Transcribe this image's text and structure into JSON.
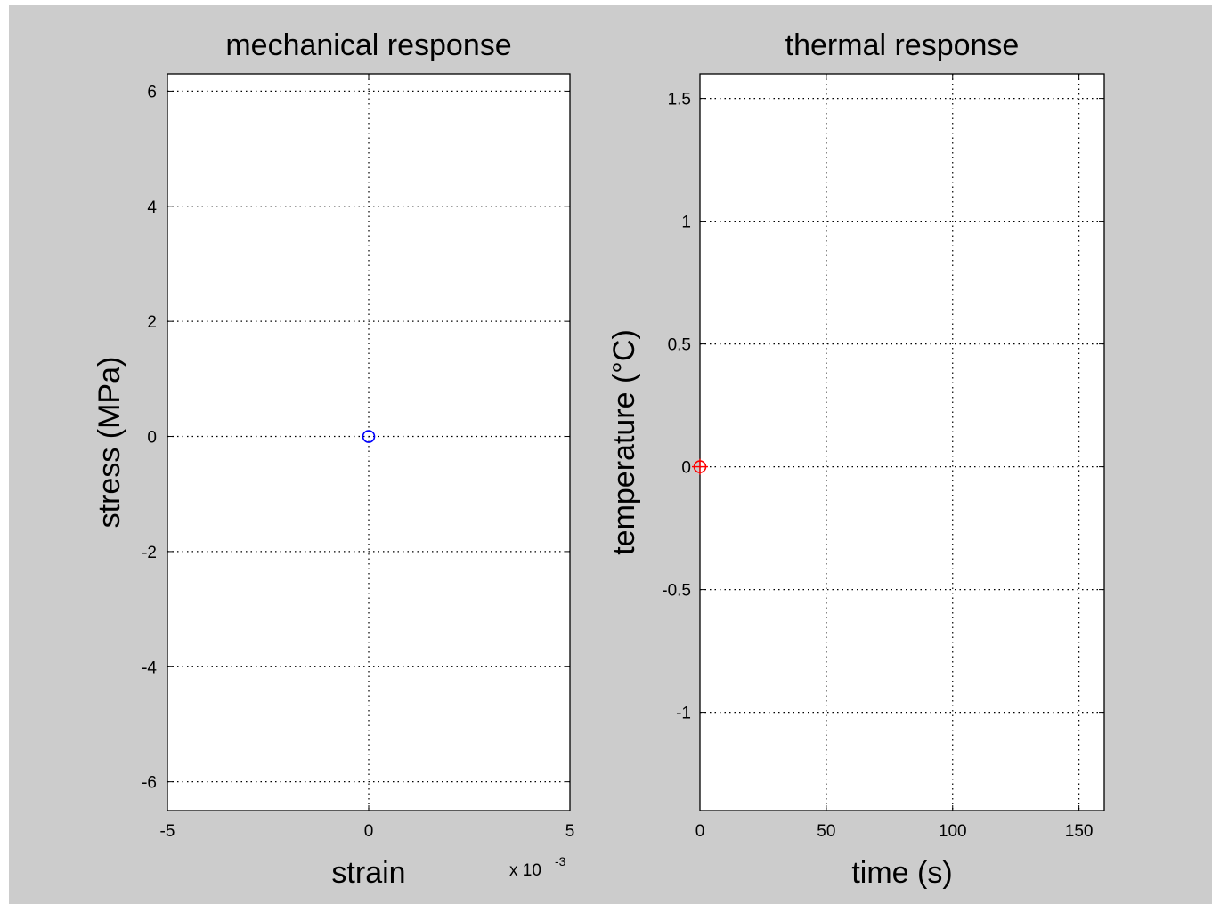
{
  "figure": {
    "background_color": "#cccccc",
    "axes_color": "#ffffff"
  },
  "chart_data": [
    {
      "type": "scatter",
      "title": "mechanical response",
      "xlabel": "strain",
      "ylabel": "stress (MPa)",
      "x_exponent_base": "x 10",
      "x_exponent_power": "-3",
      "xlim": [
        -5,
        5
      ],
      "ylim": [
        -6.5,
        6.3
      ],
      "xticks": [
        -5,
        0,
        5
      ],
      "yticks": [
        -6,
        -4,
        -2,
        0,
        2,
        4,
        6
      ],
      "xtick_labels": [
        "-5",
        "0",
        "5"
      ],
      "ytick_labels": [
        "-6",
        "-4",
        "-2",
        "0",
        "2",
        "4",
        "6"
      ],
      "x_scale_factor": 0.001,
      "grid": true,
      "series": [
        {
          "marker": "circle",
          "color": "#0000ff",
          "points": [
            {
              "x": 0,
              "y": 0
            }
          ]
        }
      ]
    },
    {
      "type": "scatter",
      "title": "thermal response",
      "xlabel": "time (s)",
      "ylabel": "temperature (°C)",
      "xlim": [
        0,
        160
      ],
      "ylim": [
        -1.4,
        1.6
      ],
      "xticks": [
        0,
        50,
        100,
        150
      ],
      "yticks": [
        -1,
        -0.5,
        0,
        0.5,
        1,
        1.5
      ],
      "xtick_labels": [
        "0",
        "50",
        "100",
        "150"
      ],
      "ytick_labels": [
        "-1",
        "-0.5",
        "0",
        "0.5",
        "1",
        "1.5"
      ],
      "grid": true,
      "series": [
        {
          "marker": "circle-plus",
          "color": "#ff0000",
          "points": [
            {
              "x": 0,
              "y": 0
            }
          ]
        }
      ]
    }
  ]
}
